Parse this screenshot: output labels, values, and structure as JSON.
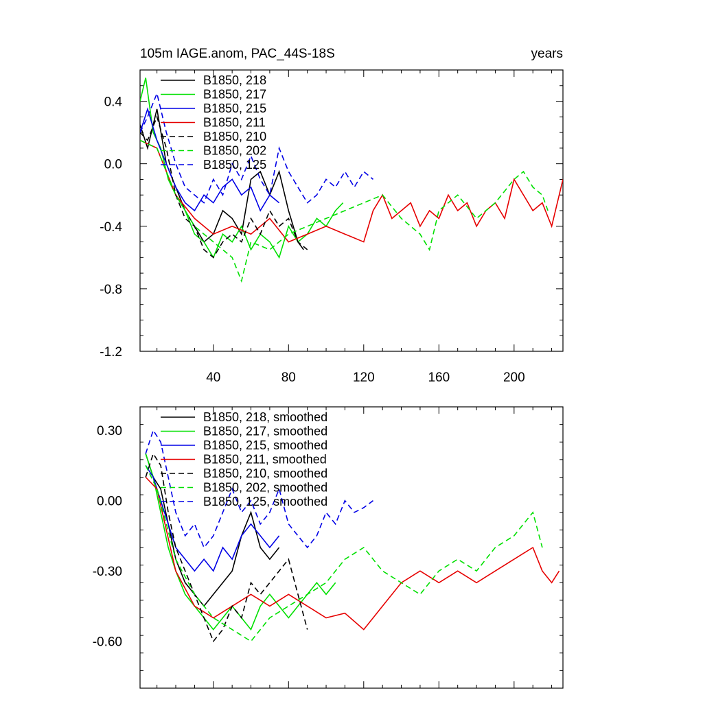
{
  "title_left": "105m IAGE.anom, PAC_44S-18S",
  "title_right": "years",
  "colors": {
    "black": "#000000",
    "green": "#00e000",
    "blue": "#0000e6",
    "red": "#e60000"
  },
  "chart_data": [
    {
      "type": "line",
      "panel": "top",
      "title": "105m IAGE.anom, PAC_44S-18S",
      "title_right": "years",
      "xlim": [
        1,
        226
      ],
      "ylim": [
        -1.2,
        0.6
      ],
      "xticks": [
        40,
        80,
        120,
        160,
        200
      ],
      "yticks": [
        0.4,
        0.0,
        -0.4,
        -0.8,
        -1.2
      ],
      "ytick_labels": [
        "0.4",
        "0.0",
        "-0.4",
        "-0.8",
        "-1.2"
      ],
      "legend_position": "top-left",
      "series": [
        {
          "name": "B1850, 218",
          "color": "#000000",
          "dash": false,
          "x": [
            1,
            5,
            10,
            15,
            20,
            25,
            30,
            35,
            40,
            45,
            50,
            55,
            60,
            65,
            70,
            75,
            80,
            85,
            88
          ],
          "y": [
            0.25,
            0.1,
            0.35,
            0.0,
            -0.15,
            -0.3,
            -0.4,
            -0.5,
            -0.45,
            -0.3,
            -0.35,
            -0.45,
            -0.1,
            -0.05,
            -0.2,
            -0.05,
            -0.3,
            -0.5,
            -0.55
          ]
        },
        {
          "name": "B1850, 217",
          "color": "#00e000",
          "dash": false,
          "x": [
            1,
            4,
            8,
            12,
            16,
            20,
            25,
            30,
            35,
            40,
            45,
            50,
            55,
            60,
            65,
            70,
            75,
            80,
            85,
            90,
            95,
            100,
            105,
            109
          ],
          "y": [
            0.4,
            0.55,
            0.2,
            0.1,
            -0.1,
            -0.2,
            -0.3,
            -0.45,
            -0.5,
            -0.6,
            -0.45,
            -0.5,
            -0.4,
            -0.55,
            -0.45,
            -0.5,
            -0.6,
            -0.4,
            -0.5,
            -0.45,
            -0.35,
            -0.4,
            -0.3,
            -0.25
          ]
        },
        {
          "name": "B1850, 215",
          "color": "#0000e6",
          "dash": false,
          "x": [
            1,
            5,
            10,
            15,
            20,
            25,
            30,
            35,
            40,
            45,
            50,
            55,
            60,
            65,
            70,
            75
          ],
          "y": [
            0.2,
            0.35,
            0.15,
            0.0,
            -0.15,
            -0.25,
            -0.3,
            -0.2,
            -0.25,
            -0.15,
            -0.1,
            -0.2,
            -0.15,
            -0.3,
            -0.2,
            -0.25
          ]
        },
        {
          "name": "B1850, 211",
          "color": "#e60000",
          "dash": false,
          "x": [
            1,
            10,
            20,
            30,
            40,
            50,
            60,
            70,
            80,
            90,
            100,
            110,
            120,
            125,
            130,
            135,
            140,
            145,
            150,
            155,
            160,
            165,
            170,
            175,
            180,
            185,
            190,
            195,
            200,
            205,
            210,
            215,
            220,
            226
          ],
          "y": [
            0.15,
            0.1,
            -0.2,
            -0.35,
            -0.45,
            -0.4,
            -0.45,
            -0.35,
            -0.5,
            -0.45,
            -0.4,
            -0.45,
            -0.5,
            -0.3,
            -0.2,
            -0.35,
            -0.3,
            -0.25,
            -0.4,
            -0.3,
            -0.35,
            -0.2,
            -0.3,
            -0.25,
            -0.4,
            -0.3,
            -0.25,
            -0.35,
            -0.1,
            -0.2,
            -0.3,
            -0.25,
            -0.4,
            -0.1
          ]
        },
        {
          "name": "B1850, 210",
          "color": "#000000",
          "dash": true,
          "x": [
            1,
            5,
            10,
            15,
            20,
            25,
            30,
            35,
            40,
            45,
            50,
            55,
            60,
            65,
            70,
            75,
            80,
            85,
            90
          ],
          "y": [
            0.2,
            0.15,
            0.3,
            0.1,
            -0.2,
            -0.35,
            -0.4,
            -0.55,
            -0.6,
            -0.5,
            -0.45,
            -0.5,
            -0.35,
            -0.45,
            -0.3,
            -0.4,
            -0.35,
            -0.5,
            -0.55
          ]
        },
        {
          "name": "B1850, 202",
          "color": "#00e000",
          "dash": true,
          "x": [
            1,
            10,
            20,
            30,
            40,
            50,
            55,
            60,
            70,
            80,
            90,
            100,
            110,
            120,
            130,
            140,
            150,
            155,
            160,
            170,
            180,
            190,
            200,
            205,
            210,
            215,
            218
          ],
          "y": [
            0.15,
            0.1,
            -0.2,
            -0.4,
            -0.5,
            -0.6,
            -0.75,
            -0.5,
            -0.55,
            -0.45,
            -0.4,
            -0.35,
            -0.3,
            -0.25,
            -0.2,
            -0.35,
            -0.45,
            -0.55,
            -0.3,
            -0.2,
            -0.35,
            -0.25,
            -0.1,
            -0.05,
            -0.15,
            -0.2,
            -0.3
          ]
        },
        {
          "name": "B1850, 125",
          "color": "#0000e6",
          "dash": true,
          "x": [
            1,
            5,
            10,
            15,
            20,
            25,
            30,
            35,
            40,
            45,
            50,
            55,
            60,
            65,
            70,
            75,
            80,
            85,
            90,
            95,
            100,
            105,
            110,
            115,
            120,
            125
          ],
          "y": [
            0.2,
            0.3,
            0.45,
            0.2,
            0.0,
            -0.15,
            -0.2,
            -0.25,
            -0.1,
            -0.2,
            0.0,
            -0.1,
            0.05,
            -0.1,
            -0.2,
            0.1,
            -0.05,
            -0.15,
            -0.25,
            -0.2,
            -0.1,
            -0.15,
            -0.05,
            -0.15,
            -0.05,
            -0.1
          ]
        }
      ]
    },
    {
      "type": "line",
      "panel": "bottom",
      "xlim": [
        1,
        226
      ],
      "ylim": [
        -0.8,
        0.4
      ],
      "xticks": [
        40,
        80,
        120,
        160,
        200
      ],
      "yticks": [
        0.3,
        0.0,
        -0.3,
        -0.6
      ],
      "ytick_labels": [
        "0.30",
        "0.00",
        "-0.30",
        "-0.60"
      ],
      "legend_position": "top-left",
      "series": [
        {
          "name": "B1850, 218, smoothed",
          "color": "#000000",
          "dash": false,
          "x": [
            4,
            8,
            12,
            16,
            20,
            25,
            30,
            35,
            40,
            45,
            50,
            55,
            60,
            65,
            70,
            75
          ],
          "y": [
            0.2,
            0.1,
            0.05,
            -0.1,
            -0.25,
            -0.35,
            -0.4,
            -0.45,
            -0.4,
            -0.35,
            -0.3,
            -0.15,
            -0.05,
            -0.2,
            -0.25,
            -0.2
          ]
        },
        {
          "name": "B1850, 217, smoothed",
          "color": "#00e000",
          "dash": false,
          "x": [
            4,
            8,
            12,
            16,
            20,
            25,
            30,
            35,
            40,
            45,
            50,
            55,
            60,
            65,
            70,
            75,
            80,
            85,
            90,
            95,
            100,
            105
          ],
          "y": [
            0.2,
            0.1,
            -0.05,
            -0.2,
            -0.3,
            -0.4,
            -0.45,
            -0.5,
            -0.55,
            -0.5,
            -0.45,
            -0.5,
            -0.55,
            -0.45,
            -0.4,
            -0.45,
            -0.5,
            -0.45,
            -0.4,
            -0.35,
            -0.4,
            -0.35
          ]
        },
        {
          "name": "B1850, 215, smoothed",
          "color": "#0000e6",
          "dash": false,
          "x": [
            4,
            8,
            12,
            16,
            20,
            25,
            30,
            35,
            40,
            45,
            50,
            55,
            60,
            65,
            70,
            75
          ],
          "y": [
            0.15,
            0.1,
            0.0,
            -0.1,
            -0.2,
            -0.25,
            -0.3,
            -0.25,
            -0.3,
            -0.2,
            -0.25,
            -0.15,
            -0.1,
            -0.15,
            -0.2,
            -0.15
          ]
        },
        {
          "name": "B1850, 211, smoothed",
          "color": "#e60000",
          "dash": false,
          "x": [
            4,
            10,
            20,
            30,
            40,
            50,
            60,
            70,
            80,
            90,
            100,
            110,
            120,
            130,
            140,
            150,
            160,
            170,
            180,
            190,
            200,
            210,
            215,
            220,
            224
          ],
          "y": [
            0.1,
            0.05,
            -0.3,
            -0.45,
            -0.5,
            -0.45,
            -0.4,
            -0.45,
            -0.4,
            -0.45,
            -0.5,
            -0.48,
            -0.55,
            -0.45,
            -0.35,
            -0.3,
            -0.35,
            -0.3,
            -0.35,
            -0.3,
            -0.25,
            -0.2,
            -0.3,
            -0.35,
            -0.3
          ]
        },
        {
          "name": "B1850, 210, smoothed",
          "color": "#000000",
          "dash": true,
          "x": [
            4,
            8,
            12,
            16,
            20,
            25,
            30,
            35,
            40,
            45,
            50,
            55,
            60,
            65,
            70,
            75,
            80,
            85,
            90
          ],
          "y": [
            0.1,
            0.2,
            0.15,
            -0.05,
            -0.2,
            -0.3,
            -0.4,
            -0.5,
            -0.6,
            -0.55,
            -0.45,
            -0.5,
            -0.35,
            -0.4,
            -0.35,
            -0.3,
            -0.25,
            -0.4,
            -0.55
          ]
        },
        {
          "name": "B1850, 202, smoothed",
          "color": "#00e000",
          "dash": true,
          "x": [
            4,
            10,
            20,
            30,
            40,
            50,
            60,
            65,
            70,
            80,
            90,
            100,
            110,
            120,
            130,
            140,
            150,
            160,
            170,
            180,
            190,
            200,
            205,
            210,
            215
          ],
          "y": [
            0.15,
            0.05,
            -0.25,
            -0.4,
            -0.5,
            -0.55,
            -0.6,
            -0.55,
            -0.5,
            -0.45,
            -0.4,
            -0.35,
            -0.25,
            -0.2,
            -0.3,
            -0.35,
            -0.4,
            -0.3,
            -0.25,
            -0.3,
            -0.2,
            -0.15,
            -0.1,
            -0.05,
            -0.2
          ]
        },
        {
          "name": "B1850, 125, smoothed",
          "color": "#0000e6",
          "dash": true,
          "x": [
            4,
            8,
            12,
            16,
            20,
            25,
            30,
            35,
            40,
            45,
            50,
            55,
            60,
            65,
            70,
            75,
            80,
            85,
            90,
            95,
            100,
            105,
            110,
            115,
            120,
            125
          ],
          "y": [
            0.2,
            0.3,
            0.25,
            0.1,
            -0.05,
            -0.15,
            -0.1,
            -0.2,
            -0.15,
            -0.05,
            0.05,
            -0.05,
            0.0,
            -0.1,
            -0.05,
            0.05,
            -0.1,
            -0.15,
            -0.2,
            -0.15,
            -0.05,
            -0.1,
            0.0,
            -0.05,
            -0.03,
            0.0
          ]
        }
      ]
    }
  ]
}
